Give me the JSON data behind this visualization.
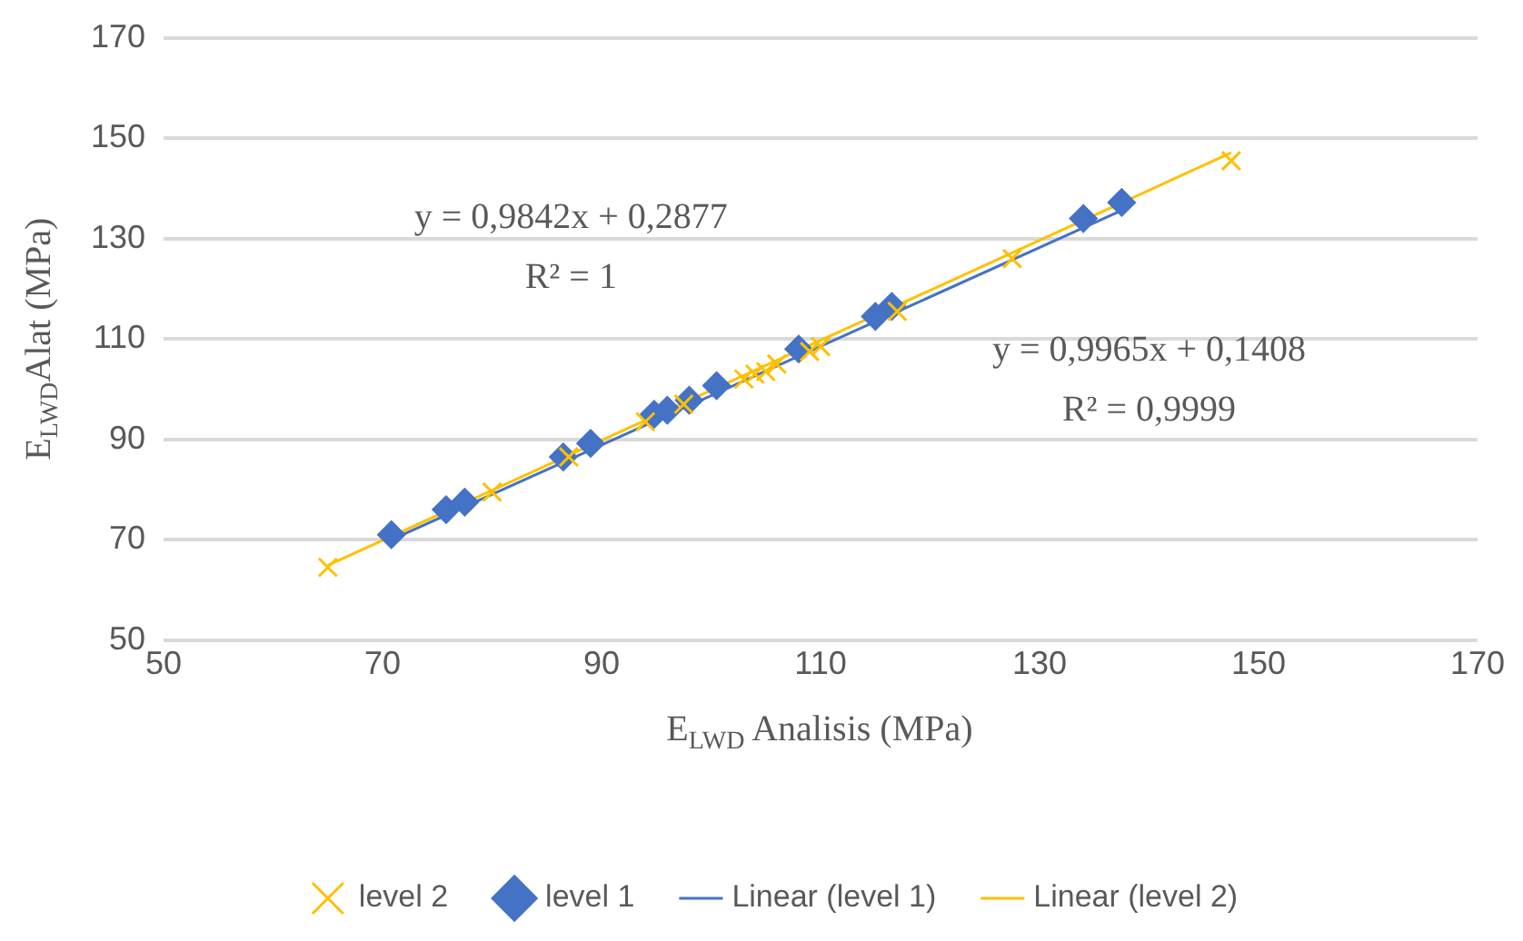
{
  "chart_data": {
    "type": "scatter",
    "xlabel": "E$_{LWD}$ Analisis (MPa)",
    "ylabel": "E$_{LWD}$Alat (MPa)",
    "xlim": [
      50,
      170
    ],
    "xticks": [
      50,
      70,
      90,
      110,
      130,
      150,
      170
    ],
    "ylim": [
      50,
      170
    ],
    "yticks": [
      50,
      70,
      90,
      110,
      130,
      150,
      170
    ],
    "grid": "y",
    "legend": "bottom",
    "series": [
      {
        "name": "level 1",
        "type": "scatter",
        "marker": "diamond",
        "color": "#4472c4",
        "x": [
          70.8,
          75.8,
          77.5,
          86.5,
          89,
          94.8,
          96,
          98,
          100.5,
          108,
          115,
          116.5,
          134,
          137.5
        ],
        "values": [
          71,
          76,
          77.5,
          86.5,
          89.2,
          95,
          95.8,
          97.8,
          100.7,
          108,
          114.5,
          116.5,
          134,
          137.2
        ]
      },
      {
        "name": "level 2",
        "type": "scatter",
        "marker": "cross",
        "color": "#ffc000",
        "x": [
          65,
          80,
          87,
          94,
          97.5,
          103,
          104,
          105,
          106,
          109,
          110,
          117,
          127.5,
          147.5
        ],
        "values": [
          64.5,
          79.5,
          86.5,
          93.5,
          97,
          102,
          103,
          103.5,
          105,
          107.5,
          108.5,
          115.5,
          126,
          145.5
        ]
      },
      {
        "name": "Linear (level 1)",
        "type": "line",
        "marker": "none",
        "color": "#4472c4",
        "x": [
          70.5,
          137.5
        ],
        "values": [
          69.7,
          135.6
        ]
      },
      {
        "name": "Linear (level 2)",
        "type": "line",
        "marker": "none",
        "color": "#ffc000",
        "x": [
          65,
          147.5
        ],
        "values": [
          64.9,
          147.1
        ]
      }
    ],
    "annotations": [
      "y = 0,9842x + 0,2877",
      "R² = 1",
      "y = 0,9965x + 0,1408",
      "R² = 0,9999"
    ]
  }
}
